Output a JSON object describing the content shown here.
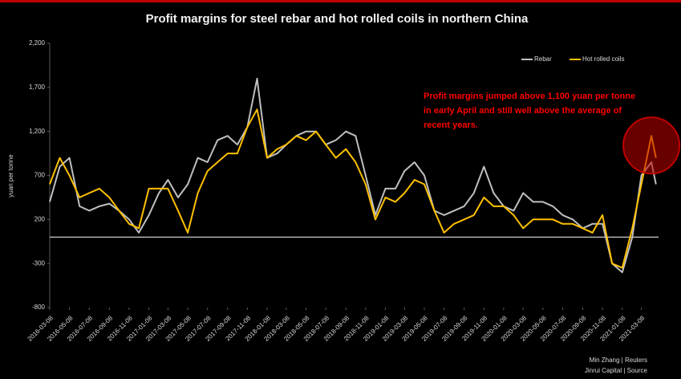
{
  "chart_data": {
    "type": "line",
    "title": "Profit margins for steel rebar and hot rolled coils in northern China",
    "y_label": "yuan per tonne",
    "annotation": [
      "Profit margins jumped above 1,100 yuan per tonne",
      "in early April and still well above the average of",
      "recent years."
    ],
    "footer": [
      "Min Zhang | Reuters",
      "Jinrui Capital | Source"
    ],
    "legend": "upper right",
    "x": [
      "2016-03-08",
      "2016-04-08",
      "2016-05-08",
      "2016-06-08",
      "2016-07-08",
      "2016-08-08",
      "2016-09-08",
      "2016-10-08",
      "2016-11-08",
      "2016-12-08",
      "2017-01-08",
      "2017-02-08",
      "2017-03-08",
      "2017-04-08",
      "2017-05-08",
      "2017-06-08",
      "2017-07-08",
      "2017-08-08",
      "2017-09-08",
      "2017-10-08",
      "2017-11-08",
      "2017-12-08",
      "2018-01-08",
      "2018-02-08",
      "2018-03-08",
      "2018-04-08",
      "2018-05-08",
      "2018-06-08",
      "2018-07-08",
      "2018-08-08",
      "2018-09-08",
      "2018-10-08",
      "2018-11-08",
      "2018-12-08",
      "2019-01-08",
      "2019-02-08",
      "2019-03-08",
      "2019-04-08",
      "2019-05-08",
      "2019-06-08",
      "2019-07-08",
      "2019-08-08",
      "2019-09-08",
      "2019-10-08",
      "2019-11-08",
      "2019-12-08",
      "2020-01-08",
      "2020-02-08",
      "2020-03-08",
      "2020-04-08",
      "2020-05-08",
      "2020-06-08",
      "2020-07-08",
      "2020-08-08",
      "2020-09-08",
      "2020-10-08",
      "2020-11-08",
      "2020-12-08",
      "2021-01-08",
      "2021-02-08",
      "2021-03-08",
      "2021-04-08",
      "2021-04-22"
    ],
    "series": [
      {
        "name": "Rebar",
        "color": "#bfbfbf",
        "values": [
          400,
          800,
          900,
          350,
          300,
          350,
          380,
          300,
          200,
          50,
          250,
          500,
          650,
          450,
          600,
          900,
          850,
          1100,
          1150,
          1050,
          1250,
          1800,
          900,
          950,
          1050,
          1150,
          1200,
          1200,
          1050,
          1100,
          1200,
          1150,
          700,
          250,
          550,
          550,
          750,
          850,
          700,
          300,
          250,
          300,
          350,
          500,
          800,
          500,
          350,
          300,
          500,
          400,
          400,
          350,
          250,
          200,
          100,
          150,
          150,
          -300,
          -400,
          0,
          700,
          850,
          600
        ]
      },
      {
        "name": "Hot rolled coils",
        "color": "#ffc000",
        "values": [
          600,
          900,
          700,
          450,
          500,
          550,
          450,
          300,
          150,
          100,
          550,
          550,
          550,
          300,
          50,
          500,
          750,
          850,
          950,
          950,
          1250,
          1450,
          900,
          1000,
          1050,
          1150,
          1100,
          1200,
          1050,
          900,
          1000,
          850,
          600,
          200,
          450,
          400,
          500,
          650,
          600,
          300,
          50,
          150,
          200,
          250,
          450,
          350,
          350,
          250,
          100,
          200,
          200,
          200,
          150,
          150,
          100,
          50,
          250,
          -300,
          -350,
          100,
          600,
          1150,
          900
        ]
      }
    ],
    "xlim": [
      "2016-03-08",
      "2021-04-30"
    ],
    "xticks": [
      "2016-03-08",
      "2016-05-08",
      "2016-07-08",
      "2016-09-08",
      "2016-11-08",
      "2017-01-08",
      "2017-03-08",
      "2017-05-08",
      "2017-07-08",
      "2017-09-08",
      "2017-11-08",
      "2018-01-08",
      "2018-03-08",
      "2018-05-08",
      "2018-07-08",
      "2018-09-08",
      "2018-11-08",
      "2019-01-08",
      "2019-03-08",
      "2019-05-08",
      "2019-07-08",
      "2019-09-08",
      "2019-11-08",
      "2020-01-08",
      "2020-03-08",
      "2020-05-08",
      "2020-07-08",
      "2020-09-08",
      "2020-11-08",
      "2021-01-08",
      "2021-03-08"
    ],
    "ylim": [
      -800,
      2200
    ],
    "yticks": [
      {
        "value": 2200,
        "label": "2,200"
      },
      {
        "value": 1700,
        "label": "1,700"
      },
      {
        "value": 1200,
        "label": "1,200"
      },
      700,
      200,
      -300,
      -800
    ]
  }
}
